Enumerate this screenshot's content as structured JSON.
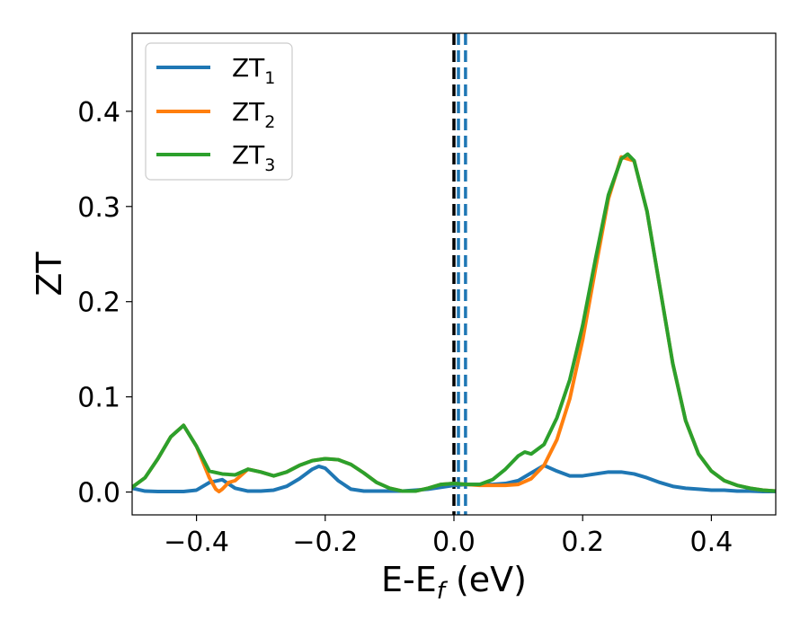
{
  "chart_data": {
    "type": "line",
    "xlabel": "E-E",
    "xlabel_sub": "f",
    "xlabel_unit": " (eV)",
    "ylabel": "ZT",
    "xlim": [
      -0.5,
      0.5
    ],
    "ylim": [
      -0.024,
      0.482
    ],
    "xticks": [
      -0.4,
      -0.2,
      0.0,
      0.2,
      0.4
    ],
    "xtick_labels": [
      "−0.4",
      "−0.2",
      "0.0",
      "0.2",
      "0.4"
    ],
    "yticks": [
      0.0,
      0.1,
      0.2,
      0.3,
      0.4
    ],
    "ytick_labels": [
      "0.0",
      "0.1",
      "0.2",
      "0.3",
      "0.4"
    ],
    "grid": false,
    "legend_position": "top-left",
    "vertical_lines": [
      {
        "x": 0.0,
        "color": "#000000",
        "style": "dashed"
      },
      {
        "x": 0.007,
        "color": "#1f77b4",
        "style": "dashed"
      },
      {
        "x": 0.018,
        "color": "#1f77b4",
        "style": "dashed"
      }
    ],
    "series": [
      {
        "name": "ZT",
        "name_sub": "1",
        "color": "#1f77b4",
        "x": [
          -0.5,
          -0.48,
          -0.46,
          -0.44,
          -0.42,
          -0.4,
          -0.38,
          -0.36,
          -0.34,
          -0.32,
          -0.3,
          -0.28,
          -0.26,
          -0.24,
          -0.22,
          -0.21,
          -0.2,
          -0.18,
          -0.16,
          -0.14,
          -0.12,
          -0.1,
          -0.08,
          -0.06,
          -0.04,
          -0.02,
          0.0,
          0.02,
          0.04,
          0.06,
          0.08,
          0.1,
          0.12,
          0.14,
          0.16,
          0.18,
          0.2,
          0.22,
          0.24,
          0.26,
          0.28,
          0.3,
          0.32,
          0.34,
          0.36,
          0.38,
          0.4,
          0.42,
          0.44,
          0.46,
          0.48,
          0.5
        ],
        "y": [
          0.004,
          0.001,
          0.0005,
          0.0005,
          0.0005,
          0.002,
          0.01,
          0.013,
          0.004,
          0.001,
          0.001,
          0.002,
          0.006,
          0.014,
          0.024,
          0.027,
          0.025,
          0.012,
          0.003,
          0.001,
          0.001,
          0.001,
          0.001,
          0.002,
          0.003,
          0.005,
          0.007,
          0.008,
          0.008,
          0.008,
          0.009,
          0.012,
          0.02,
          0.028,
          0.022,
          0.017,
          0.017,
          0.019,
          0.021,
          0.021,
          0.019,
          0.015,
          0.01,
          0.006,
          0.004,
          0.003,
          0.002,
          0.002,
          0.001,
          0.001,
          0.0005,
          0.0005
        ]
      },
      {
        "name": "ZT",
        "name_sub": "2",
        "color": "#ff7f0e",
        "x": [
          -0.5,
          -0.48,
          -0.46,
          -0.44,
          -0.42,
          -0.4,
          -0.38,
          -0.37,
          -0.365,
          -0.36,
          -0.35,
          -0.34,
          -0.32,
          -0.3,
          -0.28,
          -0.26,
          -0.24,
          -0.22,
          -0.2,
          -0.18,
          -0.16,
          -0.14,
          -0.12,
          -0.1,
          -0.08,
          -0.06,
          -0.04,
          -0.02,
          0.0,
          0.02,
          0.04,
          0.06,
          0.08,
          0.1,
          0.12,
          0.14,
          0.16,
          0.18,
          0.2,
          0.22,
          0.24,
          0.26,
          0.28,
          0.3,
          0.32,
          0.34,
          0.36,
          0.38,
          0.4,
          0.42,
          0.44,
          0.46,
          0.48,
          0.5
        ],
        "y": [
          0.005,
          0.015,
          0.035,
          0.058,
          0.07,
          0.048,
          0.015,
          0.003,
          0.0005,
          0.003,
          0.01,
          0.012,
          0.024,
          0.021,
          0.017,
          0.021,
          0.028,
          0.033,
          0.035,
          0.034,
          0.029,
          0.02,
          0.01,
          0.004,
          0.001,
          0.001,
          0.004,
          0.008,
          0.009,
          0.008,
          0.007,
          0.007,
          0.007,
          0.008,
          0.014,
          0.028,
          0.055,
          0.098,
          0.16,
          0.235,
          0.308,
          0.352,
          0.348,
          0.295,
          0.215,
          0.135,
          0.075,
          0.04,
          0.022,
          0.012,
          0.007,
          0.004,
          0.002,
          0.001
        ]
      },
      {
        "name": "ZT",
        "name_sub": "3",
        "color": "#2ca02c",
        "x": [
          -0.5,
          -0.48,
          -0.46,
          -0.44,
          -0.42,
          -0.4,
          -0.38,
          -0.36,
          -0.34,
          -0.32,
          -0.3,
          -0.28,
          -0.26,
          -0.24,
          -0.22,
          -0.2,
          -0.18,
          -0.16,
          -0.14,
          -0.12,
          -0.1,
          -0.08,
          -0.06,
          -0.04,
          -0.02,
          0.0,
          0.02,
          0.04,
          0.06,
          0.08,
          0.1,
          0.11,
          0.12,
          0.14,
          0.16,
          0.18,
          0.2,
          0.22,
          0.24,
          0.26,
          0.27,
          0.28,
          0.3,
          0.32,
          0.34,
          0.36,
          0.38,
          0.4,
          0.42,
          0.44,
          0.46,
          0.48,
          0.5
        ],
        "y": [
          0.005,
          0.015,
          0.035,
          0.058,
          0.07,
          0.048,
          0.022,
          0.019,
          0.018,
          0.024,
          0.021,
          0.017,
          0.021,
          0.028,
          0.033,
          0.035,
          0.034,
          0.029,
          0.02,
          0.01,
          0.004,
          0.001,
          0.001,
          0.004,
          0.008,
          0.009,
          0.008,
          0.008,
          0.013,
          0.024,
          0.038,
          0.042,
          0.04,
          0.05,
          0.078,
          0.118,
          0.175,
          0.245,
          0.312,
          0.35,
          0.355,
          0.348,
          0.295,
          0.215,
          0.135,
          0.075,
          0.04,
          0.022,
          0.012,
          0.007,
          0.004,
          0.002,
          0.001
        ]
      }
    ]
  }
}
